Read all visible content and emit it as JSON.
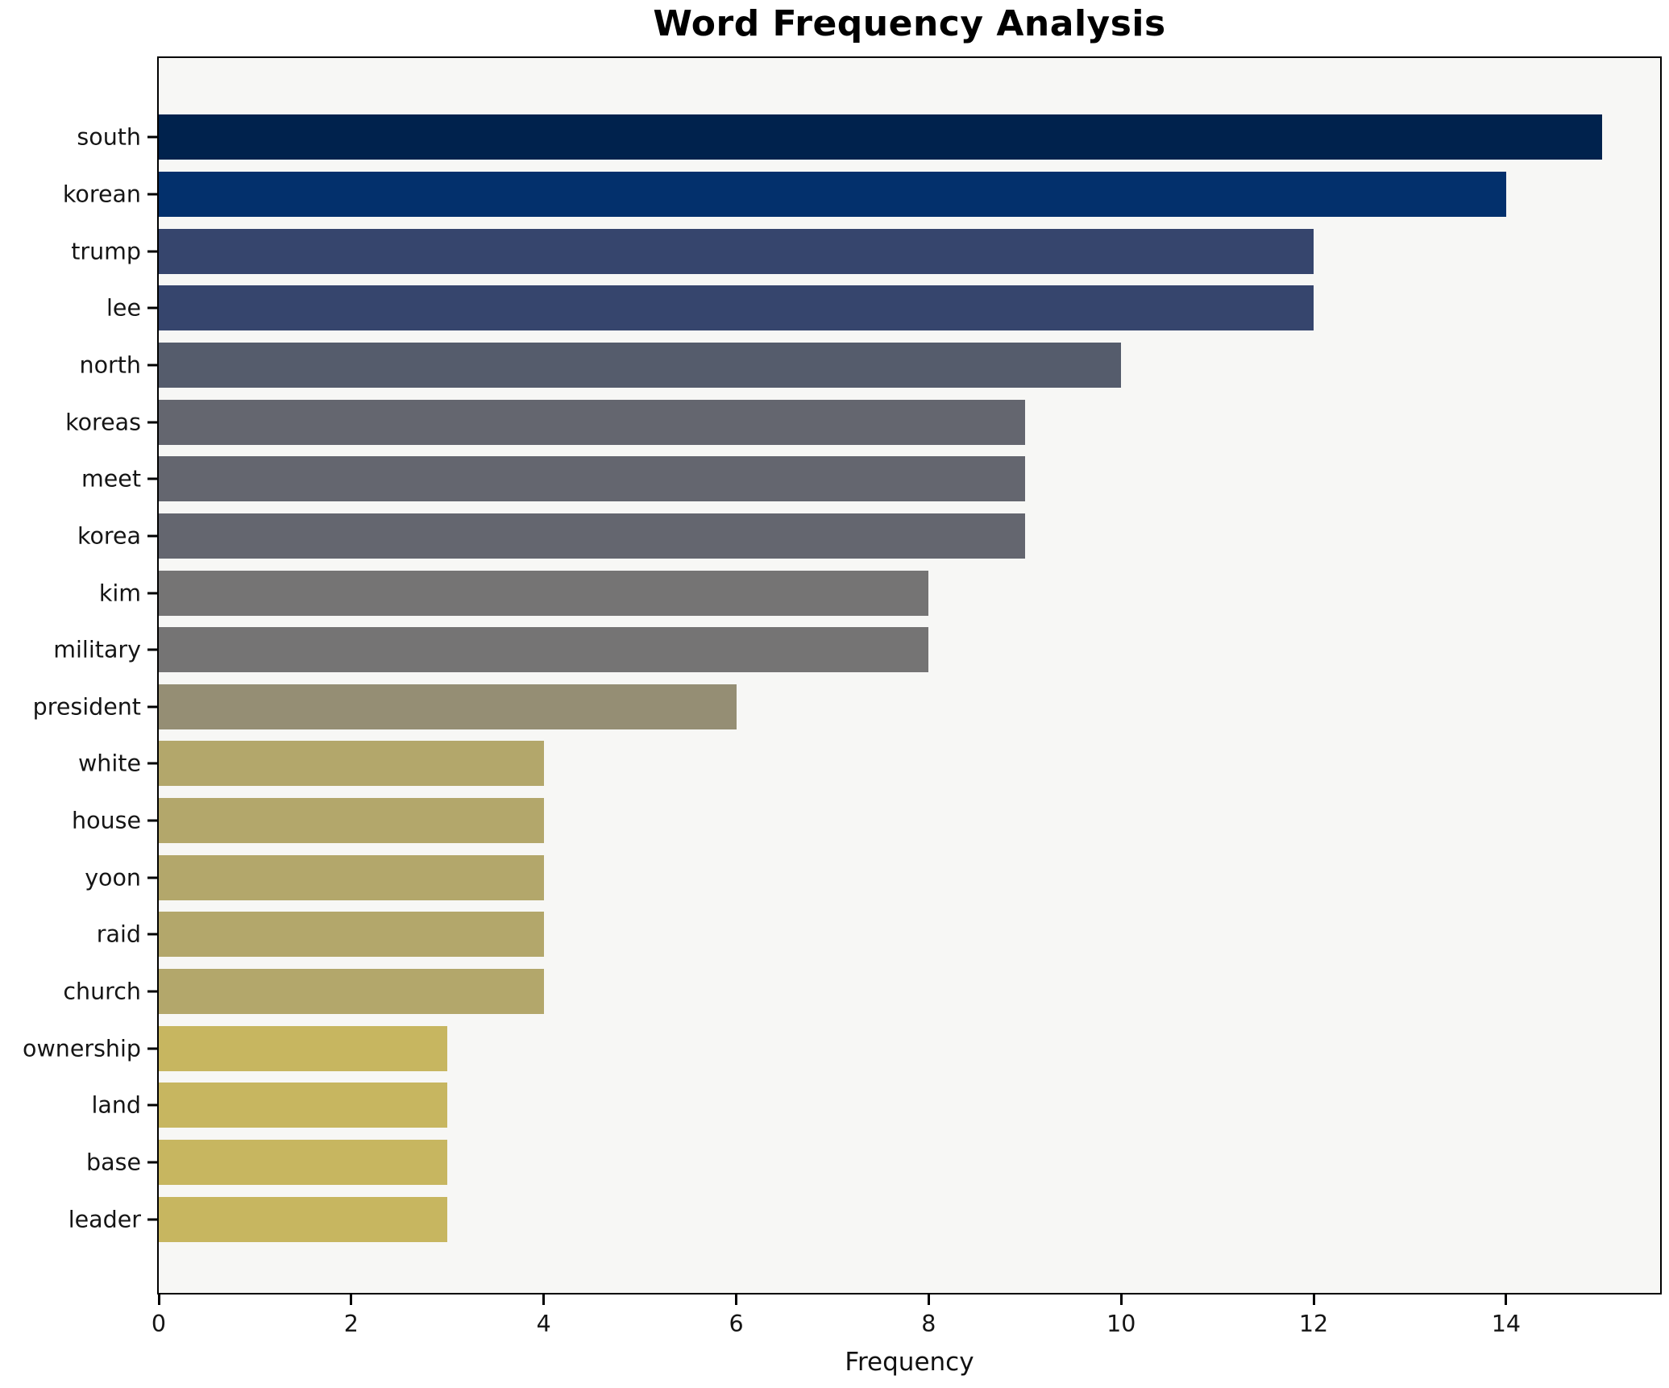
{
  "chart_data": {
    "type": "bar",
    "orientation": "horizontal",
    "title": "Word Frequency Analysis",
    "xlabel": "Frequency",
    "ylabel": "",
    "categories": [
      "south",
      "korean",
      "trump",
      "lee",
      "north",
      "koreas",
      "meet",
      "korea",
      "kim",
      "military",
      "president",
      "white",
      "house",
      "yoon",
      "raid",
      "church",
      "ownership",
      "land",
      "base",
      "leader"
    ],
    "values": [
      15,
      14,
      12,
      12,
      10,
      9,
      9,
      9,
      8,
      8,
      6,
      4,
      4,
      4,
      4,
      4,
      3,
      3,
      3,
      3
    ],
    "bar_colors": [
      "#00224d",
      "#03306c",
      "#36456d",
      "#36456d",
      "#555c6c",
      "#64666f",
      "#64666f",
      "#64666f",
      "#757474",
      "#757474",
      "#958e74",
      "#b3a76b",
      "#b3a76b",
      "#b3a76b",
      "#b3a76b",
      "#b3a76b",
      "#c7b660",
      "#c7b660",
      "#c7b660",
      "#c7b660"
    ],
    "xticks": [
      0,
      2,
      4,
      6,
      8,
      10,
      12,
      14
    ],
    "xtick_labels": [
      "0",
      "2",
      "4",
      "6",
      "8",
      "10",
      "12",
      "14"
    ],
    "xlim": [
      0,
      15.6
    ],
    "grid": false,
    "legend_position": "none",
    "axes_background": "#f7f7f5",
    "figure_background": "#ffffff",
    "spine_color": "#000000",
    "text_color": "#151515"
  }
}
